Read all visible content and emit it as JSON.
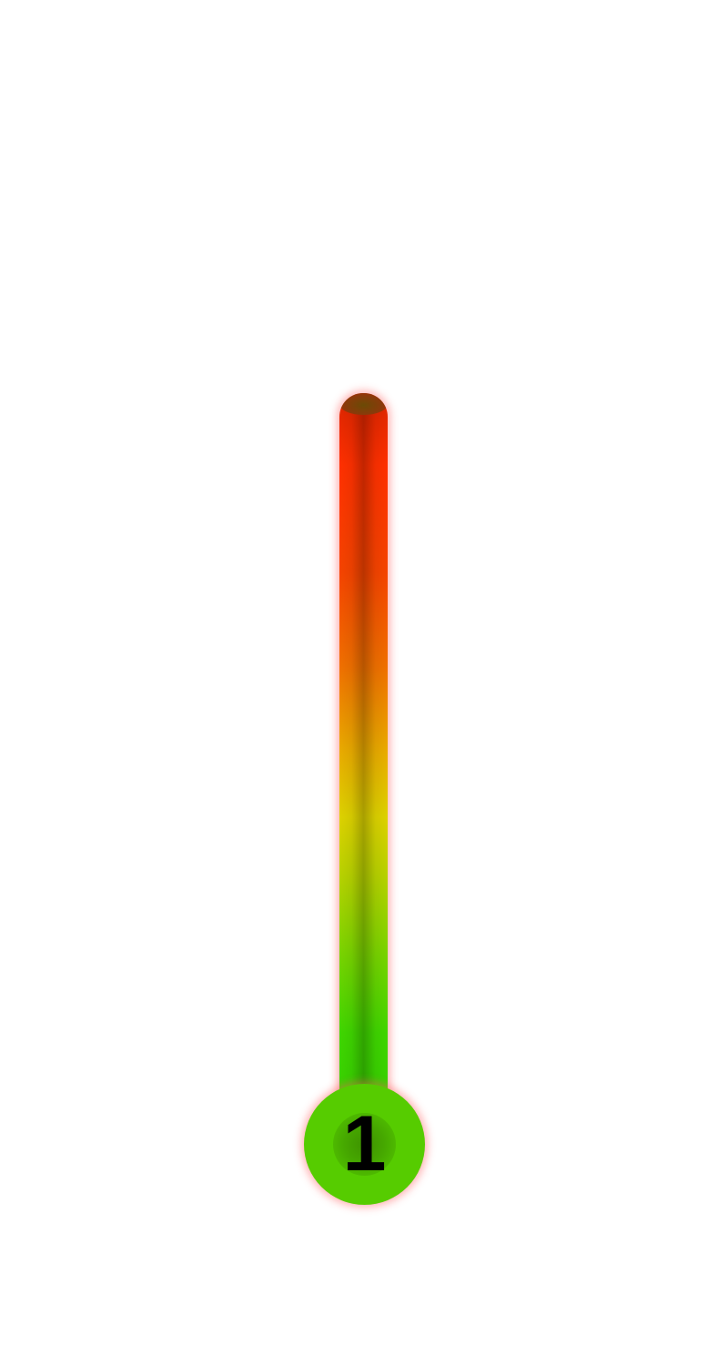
{
  "meter": {
    "value_label": "1",
    "gradient_colors": {
      "top": "#ff3000",
      "upper_middle": "#f07000",
      "middle": "#ddd200",
      "lower_middle": "#79d400",
      "bottom": "#35d000"
    },
    "bulb_color": "#56cc00",
    "glow_color": "#ff5a5a"
  }
}
